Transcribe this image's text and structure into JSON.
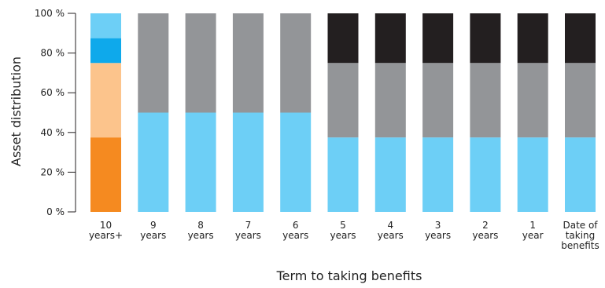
{
  "chart_data": {
    "type": "bar",
    "stacked": true,
    "ylabel": "Asset distribution",
    "xlabel": "Term to taking benefits",
    "ylim": [
      0,
      100
    ],
    "y_ticks": [
      "0 %",
      "20 %",
      "40 %",
      "60 %",
      "80 %",
      "100 %"
    ],
    "y_tick_values": [
      0,
      20,
      40,
      60,
      80,
      100
    ],
    "grid": false,
    "legend": "none",
    "categories": [
      [
        "10",
        "years+"
      ],
      [
        "9",
        "years"
      ],
      [
        "8",
        "years"
      ],
      [
        "7",
        "years"
      ],
      [
        "6",
        "years"
      ],
      [
        "5",
        "years"
      ],
      [
        "4",
        "years"
      ],
      [
        "3",
        "years"
      ],
      [
        "2",
        "years"
      ],
      [
        "1",
        "year"
      ],
      [
        "Date of",
        "taking",
        "benefits"
      ]
    ],
    "stacks": [
      [
        {
          "value": 37.5,
          "color": "#f58a20"
        },
        {
          "value": 37.5,
          "color": "#fcc48c"
        },
        {
          "value": 12.5,
          "color": "#0ea9eb"
        },
        {
          "value": 12.5,
          "color": "#6dcff6"
        }
      ],
      [
        {
          "value": 50,
          "color": "#6dcff6"
        },
        {
          "value": 50,
          "color": "#939598"
        }
      ],
      [
        {
          "value": 50,
          "color": "#6dcff6"
        },
        {
          "value": 50,
          "color": "#939598"
        }
      ],
      [
        {
          "value": 50,
          "color": "#6dcff6"
        },
        {
          "value": 50,
          "color": "#939598"
        }
      ],
      [
        {
          "value": 50,
          "color": "#6dcff6"
        },
        {
          "value": 50,
          "color": "#939598"
        }
      ],
      [
        {
          "value": 37.5,
          "color": "#6dcff6"
        },
        {
          "value": 37.5,
          "color": "#939598"
        },
        {
          "value": 25,
          "color": "#231f20"
        }
      ],
      [
        {
          "value": 37.5,
          "color": "#6dcff6"
        },
        {
          "value": 37.5,
          "color": "#939598"
        },
        {
          "value": 25,
          "color": "#231f20"
        }
      ],
      [
        {
          "value": 37.5,
          "color": "#6dcff6"
        },
        {
          "value": 37.5,
          "color": "#939598"
        },
        {
          "value": 25,
          "color": "#231f20"
        }
      ],
      [
        {
          "value": 37.5,
          "color": "#6dcff6"
        },
        {
          "value": 37.5,
          "color": "#939598"
        },
        {
          "value": 25,
          "color": "#231f20"
        }
      ],
      [
        {
          "value": 37.5,
          "color": "#6dcff6"
        },
        {
          "value": 37.5,
          "color": "#939598"
        },
        {
          "value": 25,
          "color": "#231f20"
        }
      ],
      [
        {
          "value": 37.5,
          "color": "#6dcff6"
        },
        {
          "value": 37.5,
          "color": "#939598"
        },
        {
          "value": 25,
          "color": "#231f20"
        }
      ]
    ]
  }
}
